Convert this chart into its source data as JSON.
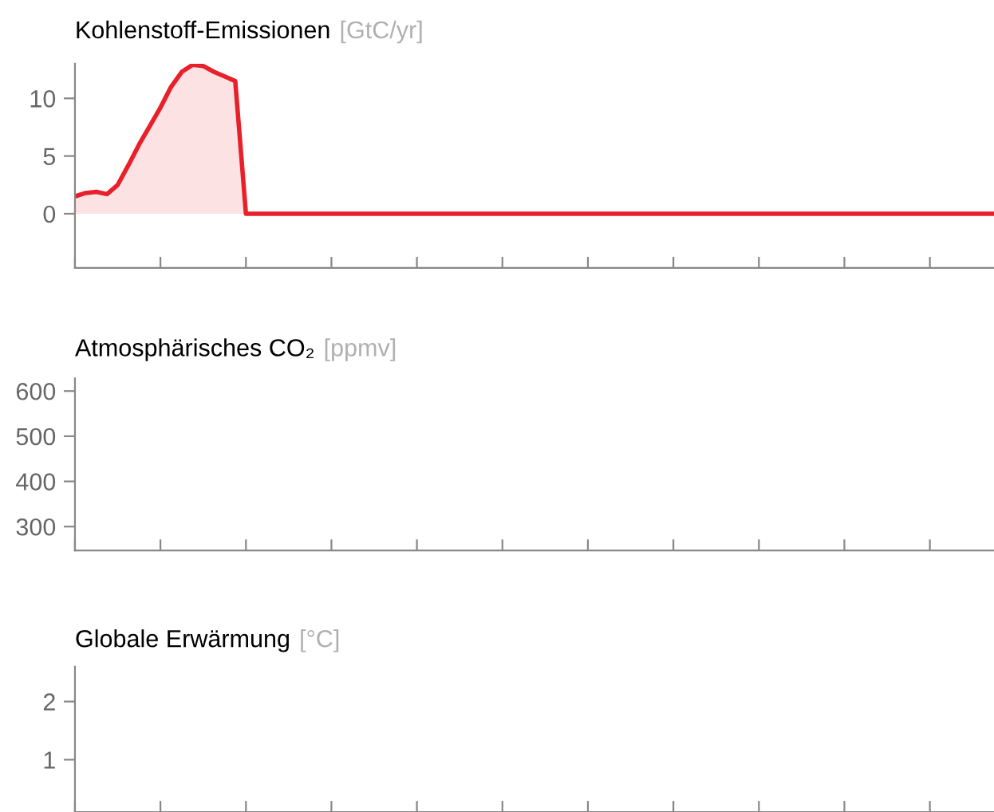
{
  "chart_data": [
    {
      "type": "area",
      "title": "Kohlenstoff-Emissionen",
      "ylabel": "[GtC/yr]",
      "tick_labels": "y",
      "ylim": [
        -4.7,
        13
      ],
      "yticks": [
        0,
        5,
        10
      ],
      "categories": [
        null,
        null,
        null,
        null,
        null,
        null,
        null,
        null,
        null,
        null,
        null,
        null,
        null,
        null,
        null,
        null,
        null,
        null,
        null,
        null,
        null,
        null,
        null,
        null,
        null,
        null,
        null,
        null,
        null,
        null,
        null,
        null,
        null,
        null,
        null,
        null,
        null,
        null,
        null,
        null,
        null,
        null,
        null,
        null,
        null,
        null,
        null,
        null,
        null,
        null,
        null,
        null,
        null,
        null,
        null,
        null,
        null,
        null,
        null,
        null,
        null,
        null,
        null,
        null,
        null,
        null,
        null,
        null,
        null,
        null,
        null,
        null,
        null,
        null,
        null,
        null,
        null,
        null,
        null,
        null,
        null,
        null,
        null,
        null,
        null,
        null,
        null
      ],
      "series": [
        {
          "color": "#e8202a",
          "values": [
            1.5,
            1.8,
            1.9,
            1.7,
            2.5,
            4.2,
            6,
            7.6,
            9.2,
            11,
            12.3,
            12.9,
            12.8,
            12.3,
            11.9,
            11.5,
            0,
            0,
            0,
            0,
            0,
            0,
            0,
            0,
            0,
            0,
            0,
            0,
            0,
            0,
            0,
            0,
            0,
            0,
            0,
            0,
            0,
            0,
            0,
            0,
            0,
            0,
            0,
            0,
            0,
            0,
            0,
            0,
            0,
            0,
            0,
            0,
            0,
            0,
            0,
            0,
            0,
            0,
            0,
            0,
            0,
            0,
            0,
            0,
            0,
            0,
            0,
            0,
            0,
            0,
            0,
            0,
            0,
            0,
            0,
            0,
            0,
            0,
            0,
            0,
            0,
            0,
            0,
            0,
            0,
            0,
            0
          ]
        }
      ]
    },
    {
      "type": "line",
      "title": "Atmosphärisches CO₂",
      "ylabel": "[ppmv]",
      "tick_labels": "y",
      "ylim": [
        247,
        628
      ],
      "yticks": [
        300,
        400,
        500,
        600
      ],
      "categories": [
        null,
        null,
        null,
        null,
        null,
        null,
        null,
        null,
        null,
        null,
        null,
        null,
        null,
        null,
        null,
        null,
        null,
        null,
        null,
        null,
        null,
        null,
        null,
        null,
        null,
        null,
        null,
        null,
        null,
        null,
        null,
        null,
        null,
        null,
        null,
        null,
        null,
        null,
        null,
        null,
        null,
        null,
        null,
        null,
        null,
        null,
        null,
        null,
        null,
        null,
        null,
        null,
        null,
        null,
        null,
        null,
        null,
        null,
        null,
        null,
        null,
        null,
        null,
        null,
        null,
        null,
        null,
        null,
        null,
        null,
        null,
        null,
        null,
        null,
        null,
        null,
        null,
        null,
        null,
        null,
        null,
        null,
        null,
        null,
        null,
        null,
        null
      ]
    },
    {
      "type": "line",
      "title": "Globale Erwärmung",
      "ylabel": "[°C]",
      "tick_labels": "y",
      "ylim": [
        0.1,
        2.6
      ],
      "yticks": [
        1,
        2
      ],
      "categories": [
        null,
        null,
        null,
        null,
        null,
        null,
        null,
        null,
        null,
        null,
        null,
        null,
        null,
        null,
        null,
        null,
        null,
        null,
        null,
        null,
        null,
        null,
        null,
        null,
        null,
        null,
        null,
        null,
        null,
        null,
        null,
        null,
        null,
        null,
        null,
        null,
        null,
        null,
        null,
        null,
        null,
        null,
        null,
        null,
        null,
        null,
        null,
        null,
        null,
        null,
        null,
        null,
        null,
        null,
        null,
        null,
        null,
        null,
        null,
        null,
        null,
        null,
        null,
        null,
        null,
        null,
        null,
        null,
        null,
        null,
        null,
        null,
        null,
        null,
        null,
        null,
        null,
        null,
        null,
        null,
        null,
        null,
        null,
        null,
        null,
        null,
        null
      ]
    }
  ]
}
